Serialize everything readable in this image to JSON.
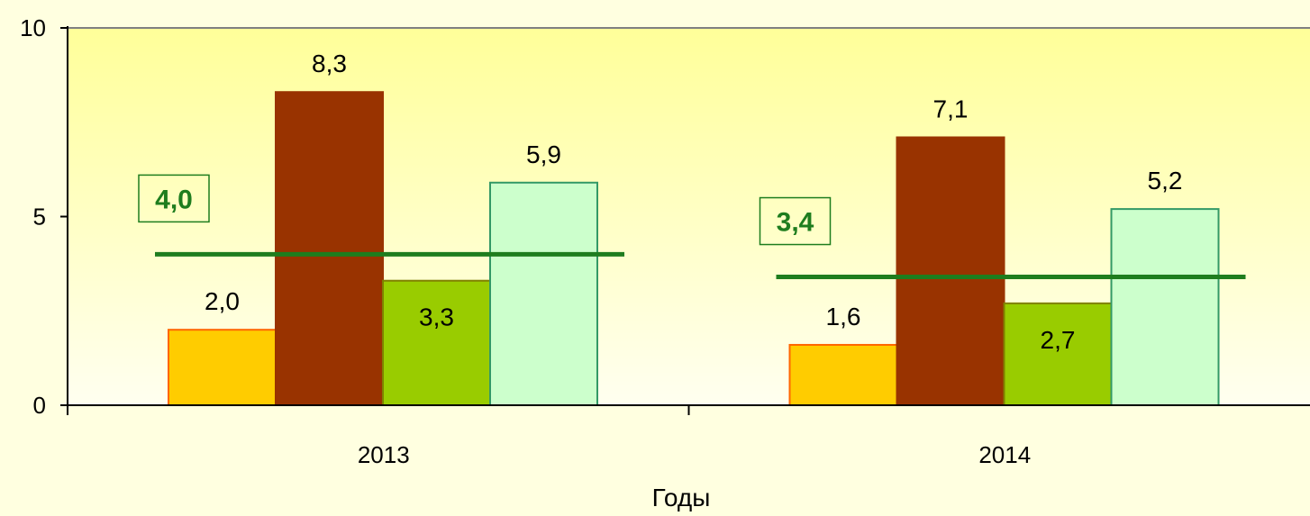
{
  "chart_data": {
    "type": "bar",
    "title": "",
    "xlabel": "Годы",
    "ylabel": "",
    "ylim": [
      0,
      10
    ],
    "yticks": [
      {
        "value": 0,
        "label": "0"
      },
      {
        "value": 5,
        "label": "5"
      },
      {
        "value": 10,
        "label": "10"
      }
    ],
    "grid": false,
    "legend": "none",
    "categories": [
      "2013",
      "2014"
    ],
    "series": [
      {
        "values": [
          2.0,
          1.6
        ],
        "labels": [
          "2,0",
          "1,6"
        ],
        "color": "#ffcc00",
        "edge": "#ff6600"
      },
      {
        "values": [
          8.3,
          7.1
        ],
        "labels": [
          "8,3",
          "7,1"
        ],
        "color": "#993300",
        "edge": "#993300"
      },
      {
        "values": [
          3.3,
          2.7
        ],
        "labels": [
          "3,3",
          "2,7"
        ],
        "color": "#99cc00",
        "edge": "#808000"
      },
      {
        "values": [
          5.9,
          5.2
        ],
        "labels": [
          "5,9",
          "5,2"
        ],
        "color": "#ccffcc",
        "edge": "#339966"
      }
    ],
    "averages": [
      {
        "value": 4.0,
        "label": "4,0"
      },
      {
        "value": 3.4,
        "label": "3,4"
      }
    ],
    "colors": {
      "page_background": "#ffffe0",
      "plot_gradient_top": "#ffff99",
      "plot_gradient_bottom": "#fffff0",
      "average_line": "#1e7d1e",
      "axis": "#000000",
      "top_border": "#808080"
    }
  }
}
